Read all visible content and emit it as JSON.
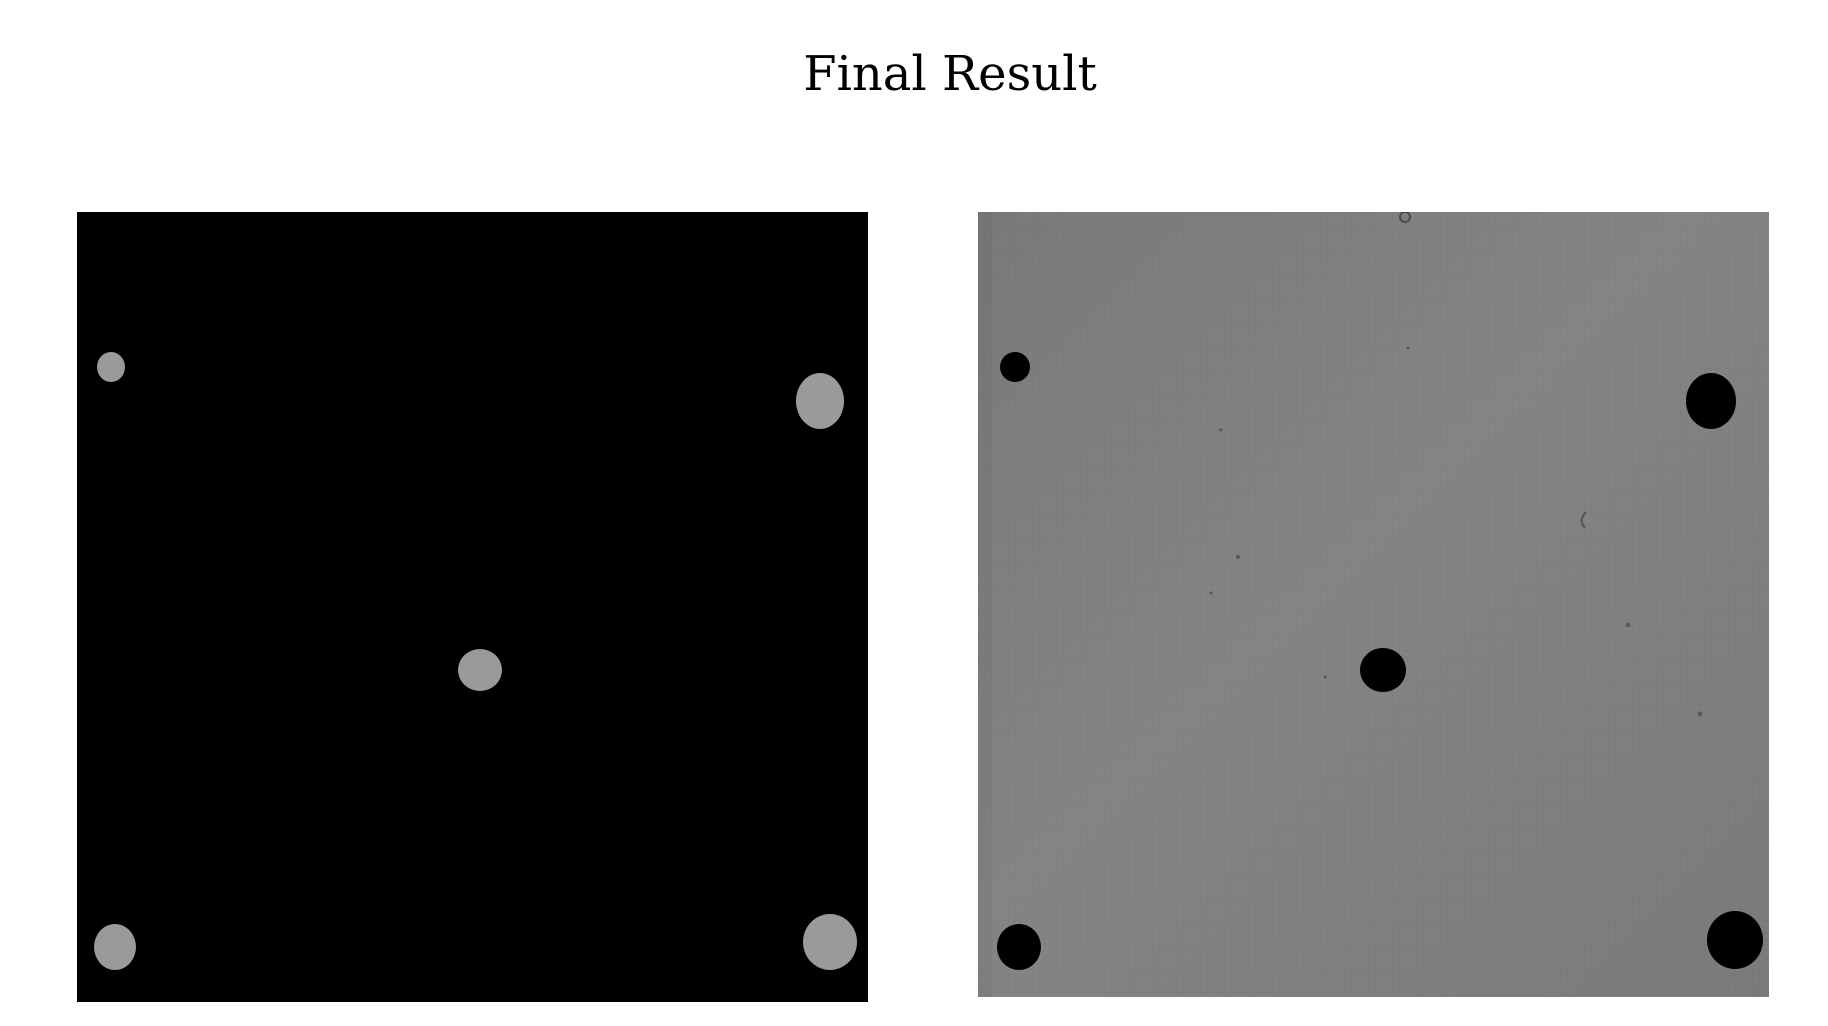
{
  "title": "Final Result",
  "colors": {
    "page_background": "#ffffff",
    "mask_background": "#000000",
    "mask_blob": "#9a9a9a",
    "plate_background": "#7c7c7c",
    "plate_highlight": "#858585",
    "plate_hole": "#000000"
  },
  "panels": {
    "mask": {
      "image": "segmentation-mask-image"
    },
    "result": {
      "image": "plate-photo-with-filled-holes-image"
    }
  }
}
